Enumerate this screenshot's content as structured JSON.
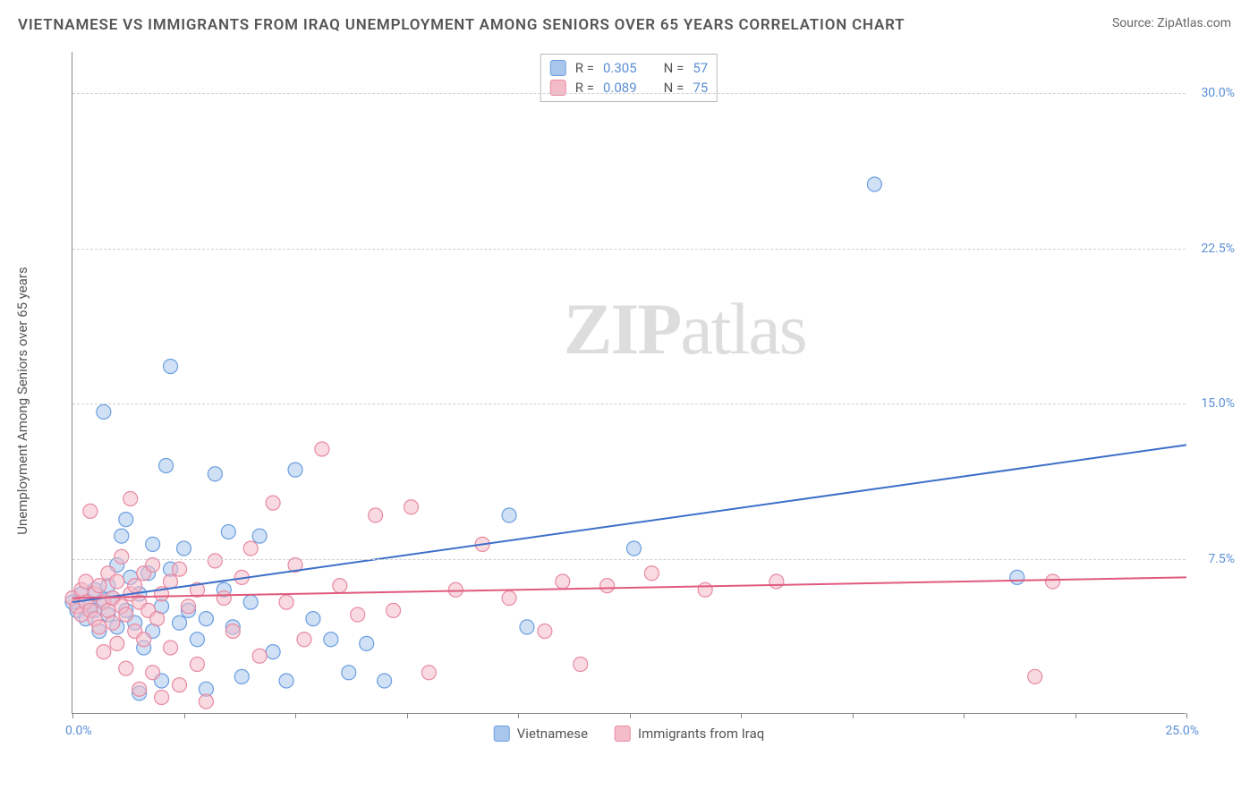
{
  "title": "VIETNAMESE VS IMMIGRANTS FROM IRAQ UNEMPLOYMENT AMONG SENIORS OVER 65 YEARS CORRELATION CHART",
  "source_label": "Source: ZipAtlas.com",
  "y_axis_label": "Unemployment Among Seniors over 65 years",
  "watermark": {
    "bold": "ZIP",
    "rest": "atlas"
  },
  "chart": {
    "type": "scatter",
    "xlim": [
      0,
      25
    ],
    "ylim": [
      0,
      32
    ],
    "x_origin_label": "0.0%",
    "x_max_label": "25.0%",
    "x_ticks": [
      0,
      2.5,
      5,
      7.5,
      10,
      12.5,
      15,
      17.5,
      20,
      22.5,
      25
    ],
    "y_gridlines": [
      {
        "value": 7.5,
        "label": "7.5%"
      },
      {
        "value": 15.0,
        "label": "15.0%"
      },
      {
        "value": 22.5,
        "label": "22.5%"
      },
      {
        "value": 30.0,
        "label": "30.0%"
      }
    ],
    "background_color": "#ffffff",
    "grid_color": "#d0d0d0",
    "axis_label_color": "#5b8fd6",
    "marker_radius": 8,
    "marker_opacity": 0.55,
    "line_width": 2
  },
  "series": [
    {
      "name": "Vietnamese",
      "legend_label": "Vietnamese",
      "fill_color": "#a9c7ec",
      "stroke_color": "#6b9fe0",
      "line_color": "#3d6fc9",
      "r_label": "R =",
      "r_value": "0.305",
      "n_label": "N =",
      "n_value": "57",
      "trend": {
        "x1": 0,
        "y1": 5.4,
        "x2": 25,
        "y2": 13.0
      },
      "points": [
        [
          0.0,
          5.4
        ],
        [
          0.1,
          5.0
        ],
        [
          0.2,
          5.8
        ],
        [
          0.3,
          4.6
        ],
        [
          0.4,
          5.2
        ],
        [
          0.5,
          6.0
        ],
        [
          0.5,
          5.0
        ],
        [
          0.6,
          4.0
        ],
        [
          0.7,
          5.5
        ],
        [
          0.7,
          14.6
        ],
        [
          0.8,
          4.8
        ],
        [
          0.8,
          6.2
        ],
        [
          0.9,
          5.6
        ],
        [
          1.0,
          7.2
        ],
        [
          1.0,
          4.2
        ],
        [
          1.1,
          8.6
        ],
        [
          1.2,
          9.4
        ],
        [
          1.2,
          5.0
        ],
        [
          1.3,
          6.6
        ],
        [
          1.4,
          4.4
        ],
        [
          1.5,
          5.8
        ],
        [
          1.5,
          1.0
        ],
        [
          1.6,
          3.2
        ],
        [
          1.7,
          6.8
        ],
        [
          1.8,
          4.0
        ],
        [
          1.8,
          8.2
        ],
        [
          2.0,
          1.6
        ],
        [
          2.0,
          5.2
        ],
        [
          2.1,
          12.0
        ],
        [
          2.2,
          7.0
        ],
        [
          2.2,
          16.8
        ],
        [
          2.4,
          4.4
        ],
        [
          2.5,
          8.0
        ],
        [
          2.6,
          5.0
        ],
        [
          2.8,
          3.6
        ],
        [
          3.0,
          4.6
        ],
        [
          3.0,
          1.2
        ],
        [
          3.2,
          11.6
        ],
        [
          3.4,
          6.0
        ],
        [
          3.5,
          8.8
        ],
        [
          3.6,
          4.2
        ],
        [
          3.8,
          1.8
        ],
        [
          4.0,
          5.4
        ],
        [
          4.2,
          8.6
        ],
        [
          4.5,
          3.0
        ],
        [
          4.8,
          1.6
        ],
        [
          5.0,
          11.8
        ],
        [
          5.4,
          4.6
        ],
        [
          5.8,
          3.6
        ],
        [
          6.2,
          2.0
        ],
        [
          6.6,
          3.4
        ],
        [
          7.0,
          1.6
        ],
        [
          9.8,
          9.6
        ],
        [
          10.2,
          4.2
        ],
        [
          12.6,
          8.0
        ],
        [
          18.0,
          25.6
        ],
        [
          21.2,
          6.6
        ]
      ]
    },
    {
      "name": "Immigrants from Iraq",
      "legend_label": "Immigrants from Iraq",
      "fill_color": "#f4bcc9",
      "stroke_color": "#e88aa2",
      "line_color": "#e05a7d",
      "r_label": "R =",
      "r_value": "0.089",
      "n_label": "N =",
      "n_value": "75",
      "trend": {
        "x1": 0,
        "y1": 5.6,
        "x2": 25,
        "y2": 6.6
      },
      "points": [
        [
          0.0,
          5.6
        ],
        [
          0.1,
          5.2
        ],
        [
          0.2,
          6.0
        ],
        [
          0.2,
          4.8
        ],
        [
          0.3,
          5.4
        ],
        [
          0.3,
          6.4
        ],
        [
          0.4,
          5.0
        ],
        [
          0.4,
          9.8
        ],
        [
          0.5,
          4.6
        ],
        [
          0.5,
          5.8
        ],
        [
          0.6,
          6.2
        ],
        [
          0.6,
          4.2
        ],
        [
          0.7,
          5.4
        ],
        [
          0.7,
          3.0
        ],
        [
          0.8,
          5.0
        ],
        [
          0.8,
          6.8
        ],
        [
          0.9,
          4.4
        ],
        [
          0.9,
          5.6
        ],
        [
          1.0,
          6.4
        ],
        [
          1.0,
          3.4
        ],
        [
          1.1,
          5.2
        ],
        [
          1.1,
          7.6
        ],
        [
          1.2,
          4.8
        ],
        [
          1.2,
          2.2
        ],
        [
          1.3,
          5.8
        ],
        [
          1.3,
          10.4
        ],
        [
          1.4,
          4.0
        ],
        [
          1.4,
          6.2
        ],
        [
          1.5,
          5.4
        ],
        [
          1.5,
          1.2
        ],
        [
          1.6,
          6.8
        ],
        [
          1.6,
          3.6
        ],
        [
          1.7,
          5.0
        ],
        [
          1.8,
          7.2
        ],
        [
          1.8,
          2.0
        ],
        [
          1.9,
          4.6
        ],
        [
          2.0,
          5.8
        ],
        [
          2.0,
          0.8
        ],
        [
          2.2,
          6.4
        ],
        [
          2.2,
          3.2
        ],
        [
          2.4,
          7.0
        ],
        [
          2.4,
          1.4
        ],
        [
          2.6,
          5.2
        ],
        [
          2.8,
          6.0
        ],
        [
          2.8,
          2.4
        ],
        [
          3.0,
          0.6
        ],
        [
          3.2,
          7.4
        ],
        [
          3.4,
          5.6
        ],
        [
          3.6,
          4.0
        ],
        [
          3.8,
          6.6
        ],
        [
          4.0,
          8.0
        ],
        [
          4.2,
          2.8
        ],
        [
          4.5,
          10.2
        ],
        [
          4.8,
          5.4
        ],
        [
          5.0,
          7.2
        ],
        [
          5.2,
          3.6
        ],
        [
          5.6,
          12.8
        ],
        [
          6.0,
          6.2
        ],
        [
          6.4,
          4.8
        ],
        [
          6.8,
          9.6
        ],
        [
          7.2,
          5.0
        ],
        [
          7.6,
          10.0
        ],
        [
          8.0,
          2.0
        ],
        [
          8.6,
          6.0
        ],
        [
          9.2,
          8.2
        ],
        [
          9.8,
          5.6
        ],
        [
          10.6,
          4.0
        ],
        [
          11.0,
          6.4
        ],
        [
          11.4,
          2.4
        ],
        [
          12.0,
          6.2
        ],
        [
          13.0,
          6.8
        ],
        [
          14.2,
          6.0
        ],
        [
          15.8,
          6.4
        ],
        [
          21.6,
          1.8
        ],
        [
          22.0,
          6.4
        ]
      ]
    }
  ]
}
